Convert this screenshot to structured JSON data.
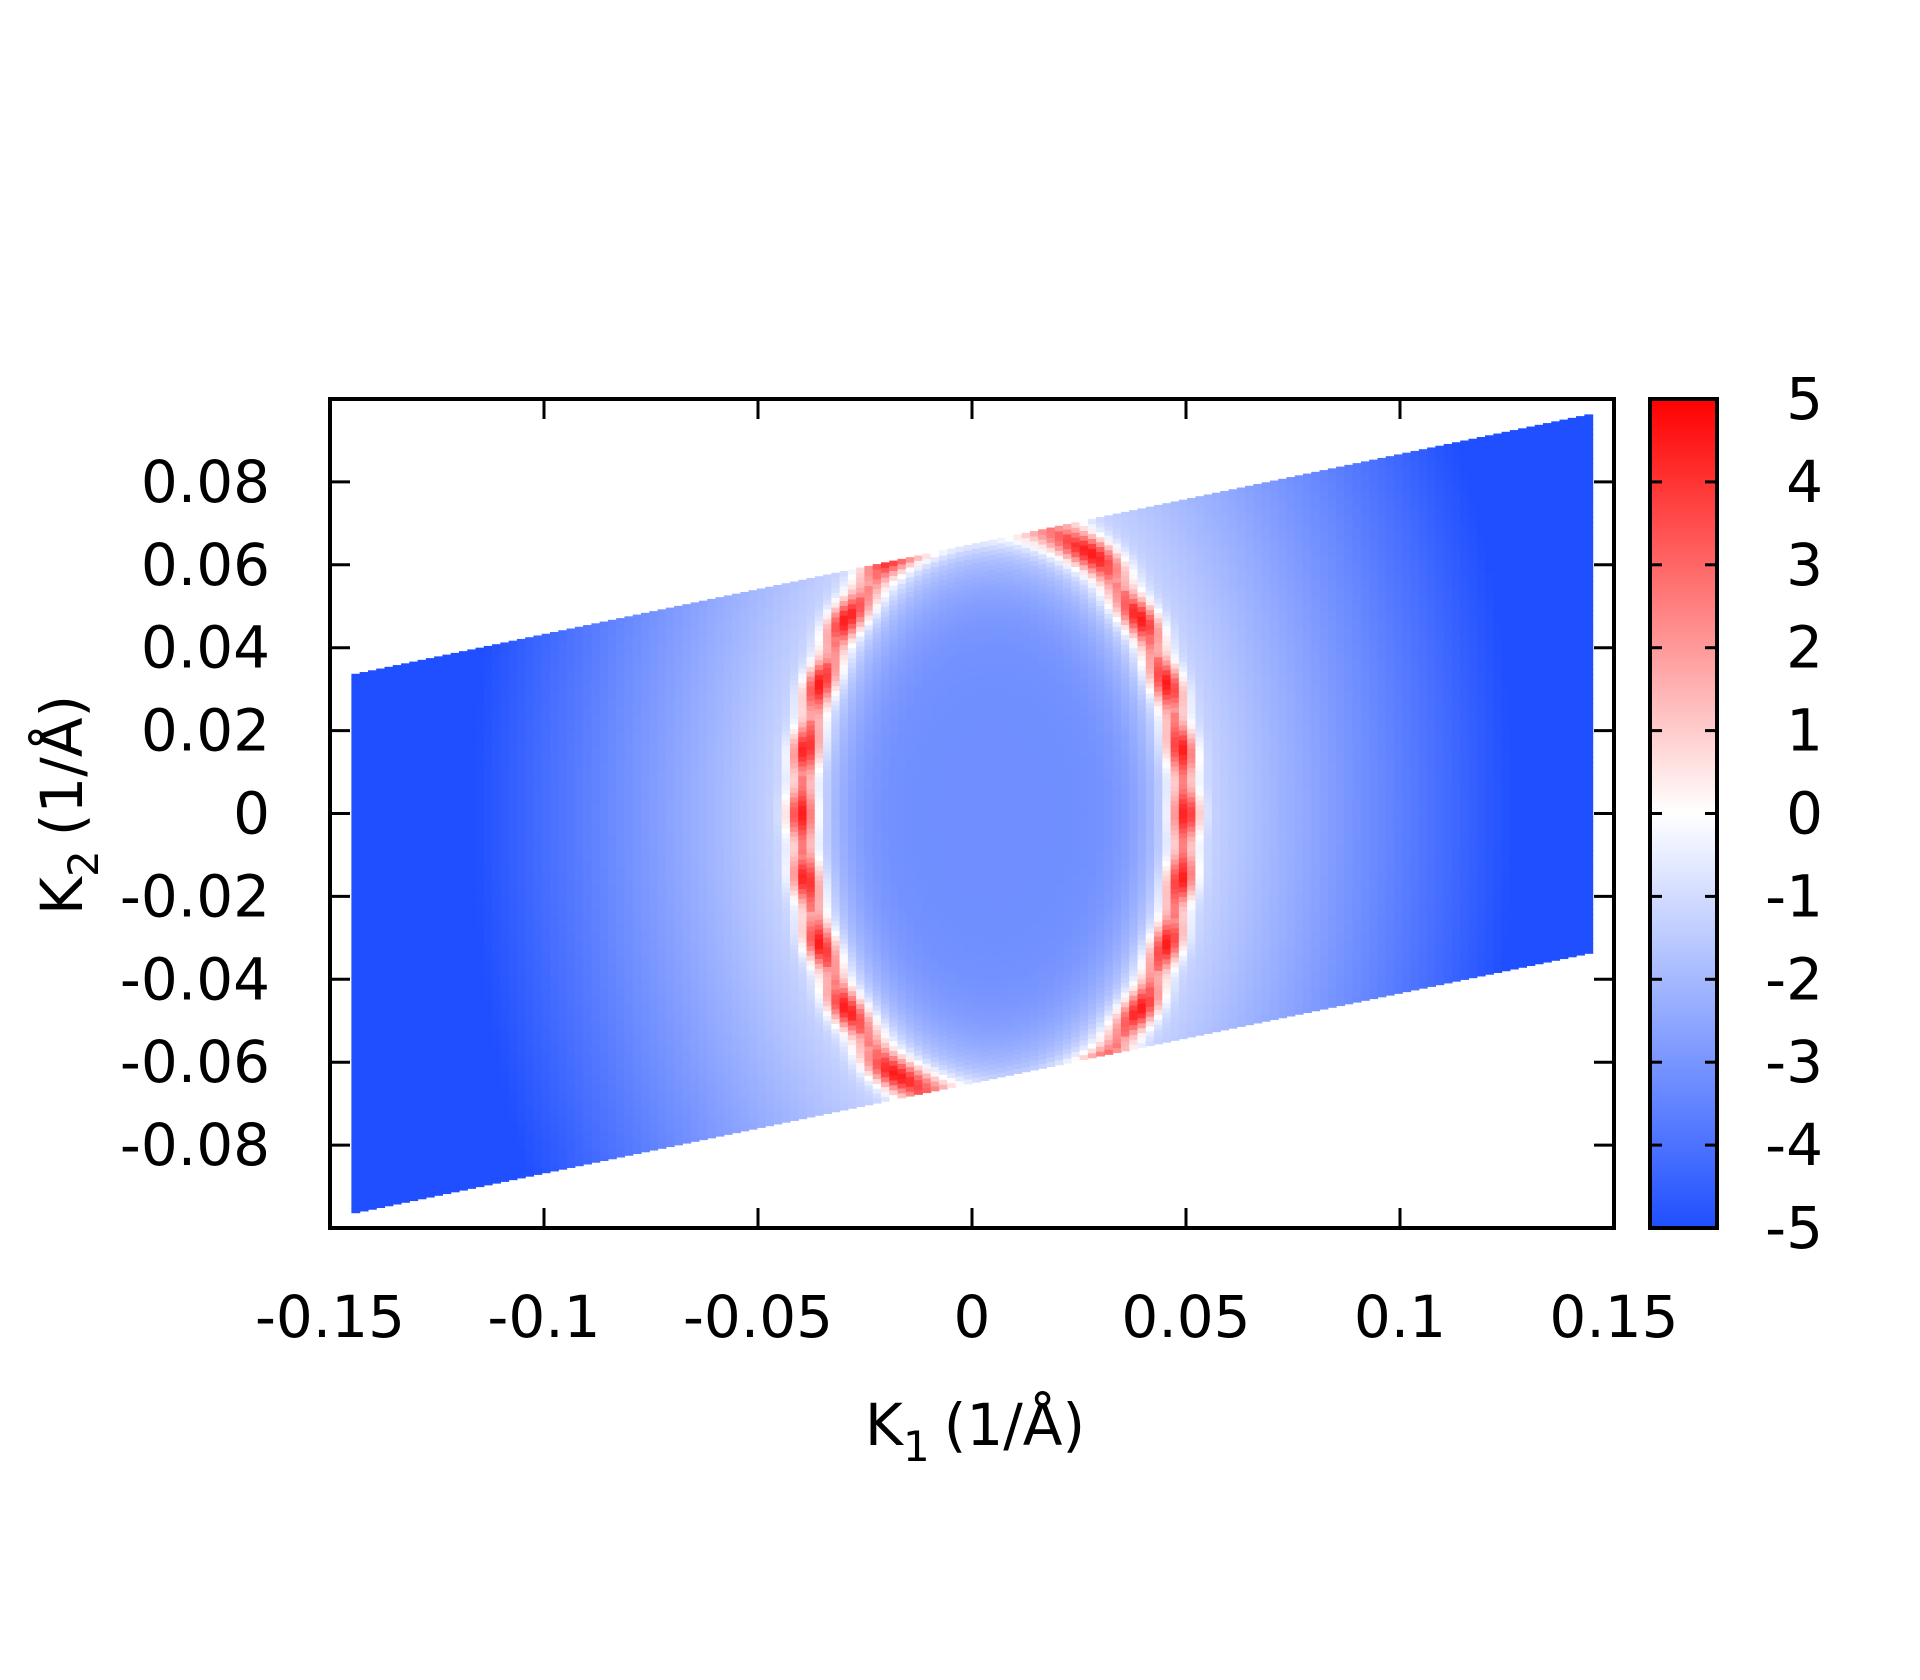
{
  "chart_data": {
    "type": "heatmap",
    "title": "",
    "xlabel": {
      "main": "K",
      "sub": "1",
      "unit": "(1/Å)"
    },
    "ylabel": {
      "main": "K",
      "sub": "2",
      "unit": "(1/Å)"
    },
    "xlim": [
      -0.15,
      0.15
    ],
    "ylim": [
      -0.1,
      0.1
    ],
    "x_ticks": [
      -0.15,
      -0.1,
      -0.05,
      0,
      0.05,
      0.1,
      0.15
    ],
    "x_tick_labels": [
      "-0.15",
      "-0.1",
      "-0.05",
      "0",
      "0.05",
      "0.1",
      "0.15"
    ],
    "y_ticks": [
      0.08,
      0.06,
      0.04,
      0.02,
      0,
      -0.02,
      -0.04,
      -0.06,
      -0.08
    ],
    "y_tick_labels": [
      "0.08",
      "0.06",
      "0.04",
      "0.02",
      "0",
      "-0.02",
      "-0.04",
      "-0.06",
      "-0.08"
    ],
    "colorbar": {
      "range": [
        -5,
        5
      ],
      "ticks": [
        5,
        4,
        3,
        2,
        1,
        0,
        -1,
        -2,
        -3,
        -4,
        -5
      ],
      "tick_labels": [
        "5",
        "4",
        "3",
        "2",
        "1",
        "0",
        "-1",
        "-2",
        "-3",
        "-4",
        "-5"
      ],
      "colors": {
        "low": "#1f4fff",
        "mid": "#ffffff",
        "high": "#ff0000"
      }
    },
    "domain": {
      "shape": "parallelogram",
      "x_range": [
        -0.145,
        0.145
      ],
      "y_range_at_left": [
        -0.0965,
        0.0335
      ],
      "y_range_at_right": [
        -0.0335,
        0.0965
      ]
    },
    "feature": {
      "shape": "ellipse ring",
      "center": [
        0.005,
        0.0
      ],
      "semi_axis_k1": 0.045,
      "semi_axis_k2": 0.073,
      "ring_value": 4.5,
      "inside_value": -3.2,
      "far_value": -5
    },
    "grid": false,
    "legend": "colorbar right"
  }
}
